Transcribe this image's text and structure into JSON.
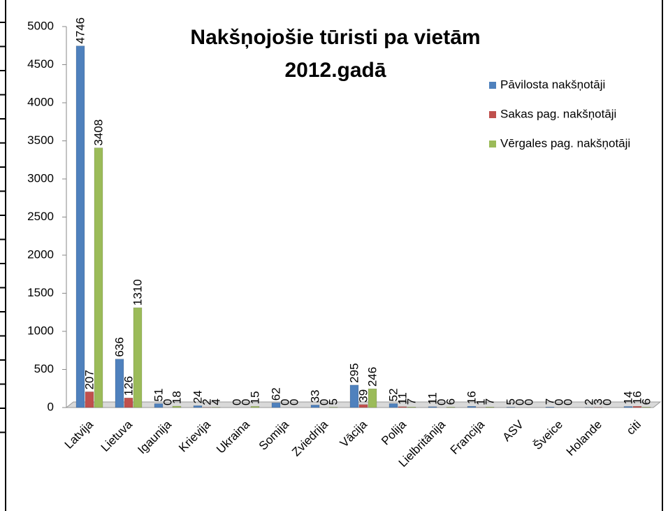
{
  "chart_data": {
    "type": "bar",
    "title": [
      "Nakšņojošie  tūristi pa vietām",
      "2012.gadā"
    ],
    "categories": [
      "Latvija",
      "Lietuva",
      "Igaunija",
      "Krievija",
      "Ukraina",
      "Somija",
      "Zviedrija",
      "Vācija",
      "Polija",
      "Lielbritānija",
      "Francija",
      "ASV",
      "Šveice",
      "Holande",
      "citi"
    ],
    "series": [
      {
        "name": "Pāvilosta nakšņotāji",
        "color": "#4f81bd",
        "values": [
          4746,
          636,
          51,
          24,
          0,
          62,
          33,
          295,
          52,
          11,
          16,
          5,
          7,
          2,
          14
        ]
      },
      {
        "name": "Sakas pag. nakšņotāji",
        "color": "#c0504d",
        "values": [
          207,
          126,
          0,
          2,
          0,
          0,
          0,
          39,
          11,
          0,
          1,
          0,
          0,
          3,
          16
        ]
      },
      {
        "name": "Vērgales pag. nakšņotāji",
        "color": "#9bbb59",
        "values": [
          3408,
          1310,
          18,
          4,
          15,
          0,
          5,
          246,
          7,
          6,
          7,
          0,
          0,
          0,
          6
        ]
      }
    ],
    "ylim": [
      0,
      5000
    ],
    "yticks": [
      0,
      500,
      1000,
      1500,
      2000,
      2500,
      3000,
      3500,
      4000,
      4500,
      5000
    ],
    "legend": "right"
  }
}
